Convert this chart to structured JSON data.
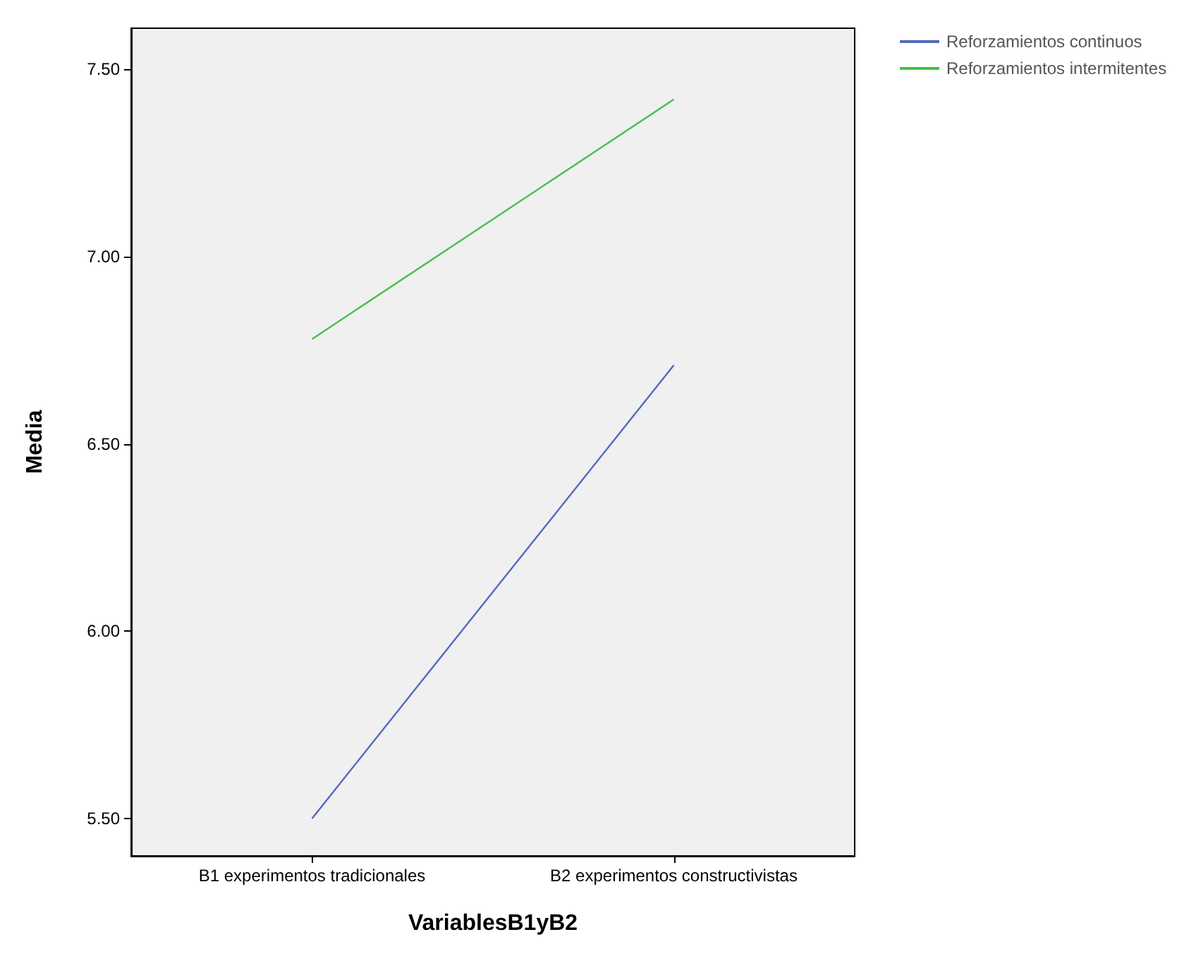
{
  "chart_data": {
    "type": "line",
    "xlabel": "VariablesB1yB2",
    "ylabel": "Media",
    "categories": [
      "B1 experimentos tradicionales",
      "B2 experimentos constructivistas"
    ],
    "series": [
      {
        "name": "Reforzamientos continuos",
        "color": "#5468c0",
        "values": [
          5.5,
          6.71
        ]
      },
      {
        "name": "Reforzamientos intermitentes",
        "color": "#44c044",
        "values": [
          6.78,
          7.42
        ]
      }
    ],
    "ylim": [
      5.4,
      7.61
    ],
    "yticks": [
      {
        "value": 5.5,
        "label": "5.50"
      },
      {
        "value": 6,
        "label": "6.00"
      },
      {
        "value": 6.5,
        "label": "6.50"
      },
      {
        "value": 7,
        "label": "7.00"
      },
      {
        "value": 7.5,
        "label": "7.50"
      }
    ],
    "grid": false,
    "legend": "top right",
    "marker": "none",
    "line_style": "solid"
  }
}
